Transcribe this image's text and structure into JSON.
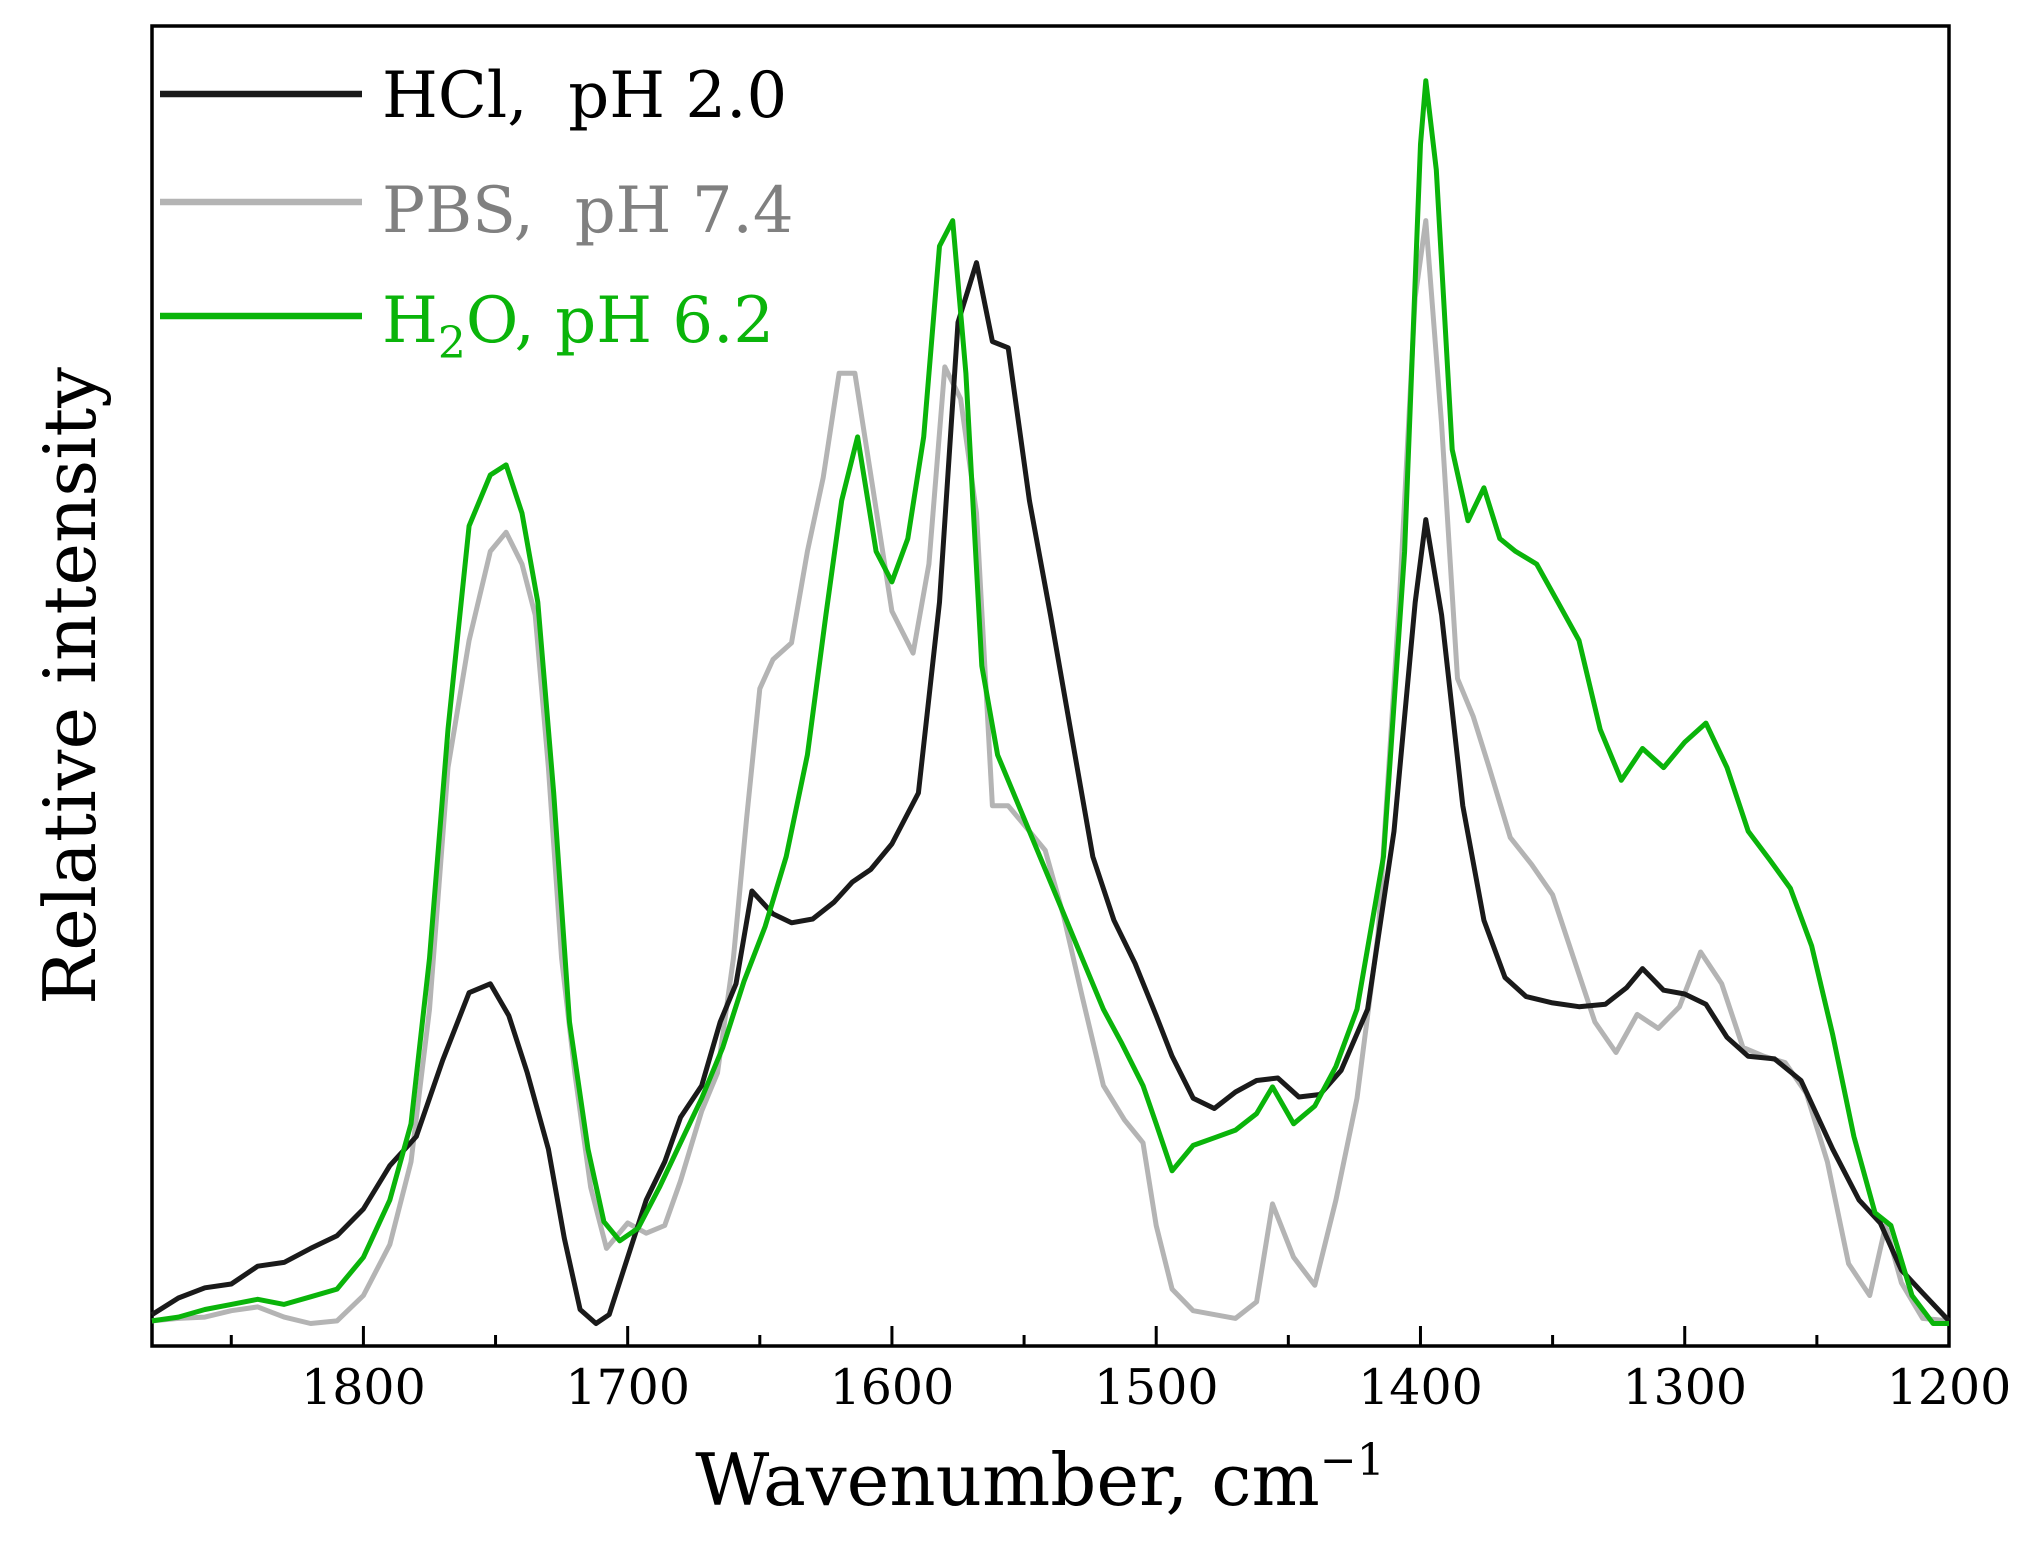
{
  "chart_data": {
    "type": "line",
    "title": "",
    "xlabel": "Wavenumber, cm",
    "xlabel_superscript": "−1",
    "ylabel": "Relative intensity",
    "xlim": [
      1880,
      1200
    ],
    "x_reversed": true,
    "ylim": [
      0,
      100
    ],
    "y_ticks_labeled": false,
    "x_ticks": [
      1800,
      1700,
      1600,
      1500,
      1400,
      1300,
      1200
    ],
    "x_tick_labels": [
      "1800",
      "1700",
      "1600",
      "1500",
      "1400",
      "1300",
      "1200"
    ],
    "grid": false,
    "legend_position": "top-left",
    "series": [
      {
        "name": "HCl,  pH 2.0",
        "color": "#1a1a1a",
        "points": [
          [
            1880,
            2
          ],
          [
            1870,
            3.3
          ],
          [
            1860,
            4.1
          ],
          [
            1850,
            4.4
          ],
          [
            1840,
            5.8
          ],
          [
            1830,
            6.1
          ],
          [
            1820,
            7.2
          ],
          [
            1810,
            8.2
          ],
          [
            1800,
            10.3
          ],
          [
            1790,
            13.7
          ],
          [
            1780,
            16
          ],
          [
            1770,
            22
          ],
          [
            1760,
            27.3
          ],
          [
            1752,
            28
          ],
          [
            1745,
            25.5
          ],
          [
            1738,
            21
          ],
          [
            1730,
            15
          ],
          [
            1724,
            8
          ],
          [
            1718,
            2.4
          ],
          [
            1712,
            1.3
          ],
          [
            1707,
            2
          ],
          [
            1700,
            6.5
          ],
          [
            1693,
            11
          ],
          [
            1686,
            14
          ],
          [
            1680,
            17.5
          ],
          [
            1672,
            20
          ],
          [
            1665,
            25
          ],
          [
            1659,
            28
          ],
          [
            1653,
            35.3
          ],
          [
            1645,
            33.5
          ],
          [
            1638,
            32.8
          ],
          [
            1630,
            33.1
          ],
          [
            1622,
            34.4
          ],
          [
            1615,
            36
          ],
          [
            1608,
            37
          ],
          [
            1600,
            39
          ],
          [
            1590,
            43
          ],
          [
            1582,
            58
          ],
          [
            1575,
            80
          ],
          [
            1568,
            84.7
          ],
          [
            1562,
            78.5
          ],
          [
            1556,
            78
          ],
          [
            1548,
            66
          ],
          [
            1540,
            57
          ],
          [
            1532,
            47.5
          ],
          [
            1524,
            38
          ],
          [
            1516,
            33
          ],
          [
            1508,
            29.6
          ],
          [
            1500,
            25.5
          ],
          [
            1494,
            22.3
          ],
          [
            1486,
            19
          ],
          [
            1478,
            18.2
          ],
          [
            1470,
            19.5
          ],
          [
            1462,
            20.4
          ],
          [
            1454,
            20.6
          ],
          [
            1446,
            19.1
          ],
          [
            1438,
            19.3
          ],
          [
            1430,
            21.2
          ],
          [
            1420,
            26
          ],
          [
            1410,
            40
          ],
          [
            1402,
            58
          ],
          [
            1398,
            64.5
          ],
          [
            1392,
            57
          ],
          [
            1384,
            42
          ],
          [
            1376,
            33
          ],
          [
            1368,
            28.5
          ],
          [
            1360,
            27
          ],
          [
            1350,
            26.5
          ],
          [
            1340,
            26.2
          ],
          [
            1330,
            26.4
          ],
          [
            1322,
            27.7
          ],
          [
            1316,
            29.2
          ],
          [
            1308,
            27.5
          ],
          [
            1300,
            27.2
          ],
          [
            1292,
            26.4
          ],
          [
            1284,
            23.8
          ],
          [
            1276,
            22.3
          ],
          [
            1266,
            22.1
          ],
          [
            1256,
            20.4
          ],
          [
            1244,
            15
          ],
          [
            1234,
            11
          ],
          [
            1226,
            9.2
          ],
          [
            1218,
            5.5
          ],
          [
            1210,
            3.7
          ],
          [
            1200,
            1.5
          ]
        ]
      },
      {
        "name": "PBS,  pH 7.4",
        "color": "#b4b4b4",
        "points": [
          [
            1880,
            1.5
          ],
          [
            1870,
            1.7
          ],
          [
            1860,
            1.8
          ],
          [
            1850,
            2.3
          ],
          [
            1840,
            2.6
          ],
          [
            1830,
            1.8
          ],
          [
            1820,
            1.3
          ],
          [
            1810,
            1.5
          ],
          [
            1800,
            3.5
          ],
          [
            1790,
            7.5
          ],
          [
            1782,
            14
          ],
          [
            1775,
            26
          ],
          [
            1768,
            45
          ],
          [
            1760,
            55
          ],
          [
            1752,
            62
          ],
          [
            1746,
            63.5
          ],
          [
            1740,
            61
          ],
          [
            1735,
            57
          ],
          [
            1730,
            45
          ],
          [
            1725,
            30
          ],
          [
            1720,
            21
          ],
          [
            1714,
            12
          ],
          [
            1708,
            7.2
          ],
          [
            1700,
            9.2
          ],
          [
            1693,
            8.4
          ],
          [
            1686,
            9
          ],
          [
            1680,
            12.5
          ],
          [
            1672,
            18
          ],
          [
            1666,
            21
          ],
          [
            1660,
            30
          ],
          [
            1655,
            41
          ],
          [
            1650,
            51.2
          ],
          [
            1645,
            53.5
          ],
          [
            1638,
            54.8
          ],
          [
            1632,
            62
          ],
          [
            1626,
            67.8
          ],
          [
            1620,
            76
          ],
          [
            1614,
            76
          ],
          [
            1608,
            68
          ],
          [
            1600,
            57.3
          ],
          [
            1592,
            54
          ],
          [
            1586,
            61
          ],
          [
            1580,
            76.5
          ],
          [
            1574,
            74
          ],
          [
            1568,
            65
          ],
          [
            1562,
            42
          ],
          [
            1556,
            42
          ],
          [
            1550,
            40.5
          ],
          [
            1542,
            38.5
          ],
          [
            1535,
            33.3
          ],
          [
            1528,
            27
          ],
          [
            1520,
            20
          ],
          [
            1512,
            17.3
          ],
          [
            1505,
            15.5
          ],
          [
            1500,
            9
          ],
          [
            1494,
            4
          ],
          [
            1486,
            2.3
          ],
          [
            1478,
            2
          ],
          [
            1470,
            1.7
          ],
          [
            1462,
            3
          ],
          [
            1456,
            10.7
          ],
          [
            1448,
            6.5
          ],
          [
            1440,
            4.3
          ],
          [
            1432,
            11
          ],
          [
            1424,
            19
          ],
          [
            1416,
            32
          ],
          [
            1408,
            58
          ],
          [
            1402,
            82
          ],
          [
            1398,
            88
          ],
          [
            1392,
            72
          ],
          [
            1386,
            52
          ],
          [
            1380,
            49
          ],
          [
            1374,
            45
          ],
          [
            1366,
            39.5
          ],
          [
            1358,
            37.4
          ],
          [
            1350,
            35
          ],
          [
            1342,
            30
          ],
          [
            1334,
            25
          ],
          [
            1326,
            22.6
          ],
          [
            1318,
            25.6
          ],
          [
            1310,
            24.5
          ],
          [
            1302,
            26.2
          ],
          [
            1294,
            30.5
          ],
          [
            1286,
            28
          ],
          [
            1278,
            23
          ],
          [
            1270,
            22.3
          ],
          [
            1262,
            21.8
          ],
          [
            1254,
            19.4
          ],
          [
            1246,
            14
          ],
          [
            1238,
            6
          ],
          [
            1230,
            3.5
          ],
          [
            1224,
            9
          ],
          [
            1218,
            4.5
          ],
          [
            1210,
            1.7
          ],
          [
            1200,
            1.5
          ]
        ]
      },
      {
        "name": "H2O, pH 6.2",
        "label_prefix": "H",
        "label_subscript": "2",
        "label_suffix": "O, pH 6.2",
        "color": "#0ab40a",
        "points": [
          [
            1880,
            1.5
          ],
          [
            1870,
            1.8
          ],
          [
            1860,
            2.4
          ],
          [
            1850,
            2.8
          ],
          [
            1840,
            3.2
          ],
          [
            1830,
            2.8
          ],
          [
            1820,
            3.4
          ],
          [
            1810,
            4
          ],
          [
            1800,
            6.5
          ],
          [
            1790,
            11
          ],
          [
            1782,
            17
          ],
          [
            1775,
            30
          ],
          [
            1768,
            48
          ],
          [
            1760,
            64
          ],
          [
            1752,
            68
          ],
          [
            1746,
            68.8
          ],
          [
            1740,
            65
          ],
          [
            1734,
            58
          ],
          [
            1728,
            43
          ],
          [
            1722,
            25
          ],
          [
            1715,
            15
          ],
          [
            1709,
            9.3
          ],
          [
            1703,
            7.8
          ],
          [
            1696,
            8.8
          ],
          [
            1688,
            12
          ],
          [
            1680,
            15.5
          ],
          [
            1672,
            19
          ],
          [
            1664,
            23
          ],
          [
            1656,
            28.2
          ],
          [
            1648,
            32.5
          ],
          [
            1640,
            38
          ],
          [
            1632,
            46
          ],
          [
            1625,
            57
          ],
          [
            1619,
            66
          ],
          [
            1613,
            71
          ],
          [
            1606,
            62
          ],
          [
            1600,
            59.6
          ],
          [
            1594,
            63
          ],
          [
            1588,
            71
          ],
          [
            1582,
            86
          ],
          [
            1577,
            88
          ],
          [
            1572,
            76
          ],
          [
            1566,
            53
          ],
          [
            1560,
            46
          ],
          [
            1552,
            42
          ],
          [
            1544,
            38
          ],
          [
            1536,
            34
          ],
          [
            1528,
            30
          ],
          [
            1520,
            26
          ],
          [
            1513,
            23.3
          ],
          [
            1505,
            20
          ],
          [
            1500,
            17
          ],
          [
            1494,
            13.3
          ],
          [
            1486,
            15.3
          ],
          [
            1478,
            15.9
          ],
          [
            1470,
            16.5
          ],
          [
            1462,
            17.8
          ],
          [
            1456,
            19.9
          ],
          [
            1448,
            17
          ],
          [
            1440,
            18.4
          ],
          [
            1432,
            21.5
          ],
          [
            1424,
            26
          ],
          [
            1414,
            38
          ],
          [
            1406,
            62
          ],
          [
            1400,
            94
          ],
          [
            1398,
            99
          ],
          [
            1394,
            92
          ],
          [
            1388,
            70
          ],
          [
            1382,
            64.4
          ],
          [
            1376,
            67
          ],
          [
            1370,
            63
          ],
          [
            1364,
            62
          ],
          [
            1356,
            61
          ],
          [
            1348,
            58
          ],
          [
            1340,
            55
          ],
          [
            1332,
            48
          ],
          [
            1324,
            44
          ],
          [
            1316,
            46.5
          ],
          [
            1308,
            45
          ],
          [
            1300,
            47
          ],
          [
            1292,
            48.5
          ],
          [
            1284,
            45
          ],
          [
            1276,
            40
          ],
          [
            1268,
            37.8
          ],
          [
            1260,
            35.5
          ],
          [
            1252,
            31
          ],
          [
            1244,
            24
          ],
          [
            1236,
            16
          ],
          [
            1228,
            10
          ],
          [
            1222,
            9
          ],
          [
            1214,
            3.5
          ],
          [
            1206,
            1.3
          ],
          [
            1200,
            1.3
          ]
        ]
      }
    ]
  }
}
